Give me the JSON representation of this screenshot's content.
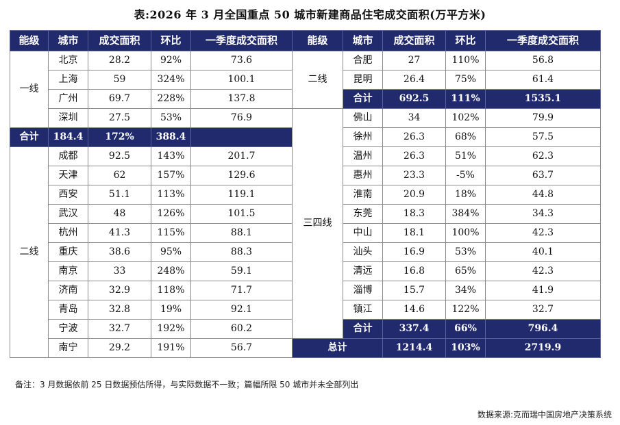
{
  "title": "表:2026 年 3 月全国重点 50 城市新建商品住宅成交面积(万平方米)",
  "headers": {
    "tier": "能级",
    "city": "城市",
    "area": "成交面积",
    "mom": "环比",
    "q1": "一季度成交面积"
  },
  "tiers": {
    "t1": "一线",
    "t2": "二线",
    "t2b": "二线",
    "t34": "三四线"
  },
  "left": {
    "tier1": [
      {
        "city": "北京",
        "area": "28.2",
        "mom": "92%",
        "q1": "73.6"
      },
      {
        "city": "上海",
        "area": "59",
        "mom": "324%",
        "q1": "100.1"
      },
      {
        "city": "广州",
        "area": "69.7",
        "mom": "228%",
        "q1": "137.8"
      },
      {
        "city": "深圳",
        "area": "27.5",
        "mom": "53%",
        "q1": "76.9"
      }
    ],
    "tier1_total": {
      "label": "合计",
      "area": "184.4",
      "mom": "172%",
      "q1": "388.4"
    },
    "tier2": [
      {
        "city": "成都",
        "area": "92.5",
        "mom": "143%",
        "q1": "201.7"
      },
      {
        "city": "天津",
        "area": "62",
        "mom": "157%",
        "q1": "129.6"
      },
      {
        "city": "西安",
        "area": "51.1",
        "mom": "113%",
        "q1": "119.1"
      },
      {
        "city": "武汉",
        "area": "48",
        "mom": "126%",
        "q1": "101.5"
      },
      {
        "city": "杭州",
        "area": "41.3",
        "mom": "115%",
        "q1": "88.1"
      },
      {
        "city": "重庆",
        "area": "38.6",
        "mom": "95%",
        "q1": "88.3"
      },
      {
        "city": "南京",
        "area": "33",
        "mom": "248%",
        "q1": "59.1"
      },
      {
        "city": "济南",
        "area": "32.9",
        "mom": "118%",
        "q1": "71.7"
      },
      {
        "city": "青岛",
        "area": "32.8",
        "mom": "19%",
        "q1": "92.1"
      },
      {
        "city": "宁波",
        "area": "32.7",
        "mom": "192%",
        "q1": "60.2"
      },
      {
        "city": "南宁",
        "area": "29.2",
        "mom": "191%",
        "q1": "56.7"
      }
    ]
  },
  "right": {
    "tier2": [
      {
        "city": "合肥",
        "area": "27",
        "mom": "110%",
        "q1": "56.8"
      },
      {
        "city": "昆明",
        "area": "26.4",
        "mom": "75%",
        "q1": "61.4"
      }
    ],
    "tier2_total": {
      "label": "合计",
      "area": "692.5",
      "mom": "111%",
      "q1": "1535.1"
    },
    "tier34": [
      {
        "city": "佛山",
        "area": "34",
        "mom": "102%",
        "q1": "79.9"
      },
      {
        "city": "徐州",
        "area": "26.3",
        "mom": "68%",
        "q1": "57.5"
      },
      {
        "city": "温州",
        "area": "26.3",
        "mom": "51%",
        "q1": "62.3"
      },
      {
        "city": "惠州",
        "area": "23.3",
        "mom": "-5%",
        "q1": "63.7"
      },
      {
        "city": "淮南",
        "area": "20.9",
        "mom": "18%",
        "q1": "44.8"
      },
      {
        "city": "东莞",
        "area": "18.3",
        "mom": "384%",
        "q1": "34.3"
      },
      {
        "city": "中山",
        "area": "18.1",
        "mom": "100%",
        "q1": "42.3"
      },
      {
        "city": "汕头",
        "area": "16.9",
        "mom": "53%",
        "q1": "40.1"
      },
      {
        "city": "清远",
        "area": "16.8",
        "mom": "65%",
        "q1": "42.3"
      },
      {
        "city": "淄博",
        "area": "15.7",
        "mom": "34%",
        "q1": "41.9"
      },
      {
        "city": "镇江",
        "area": "14.6",
        "mom": "122%",
        "q1": "32.7"
      }
    ],
    "tier34_total": {
      "label": "合计",
      "area": "337.4",
      "mom": "66%",
      "q1": "796.4"
    },
    "grand_total": {
      "label": "总计",
      "area": "1214.4",
      "mom": "103%",
      "q1": "2719.9"
    }
  },
  "note": "备注：3 月数据依前 25 日数据预估所得，与实际数据不一致；篇幅所限 50 城市并未全部列出",
  "source": "数据来源:克而瑞中国房地产决策系统"
}
